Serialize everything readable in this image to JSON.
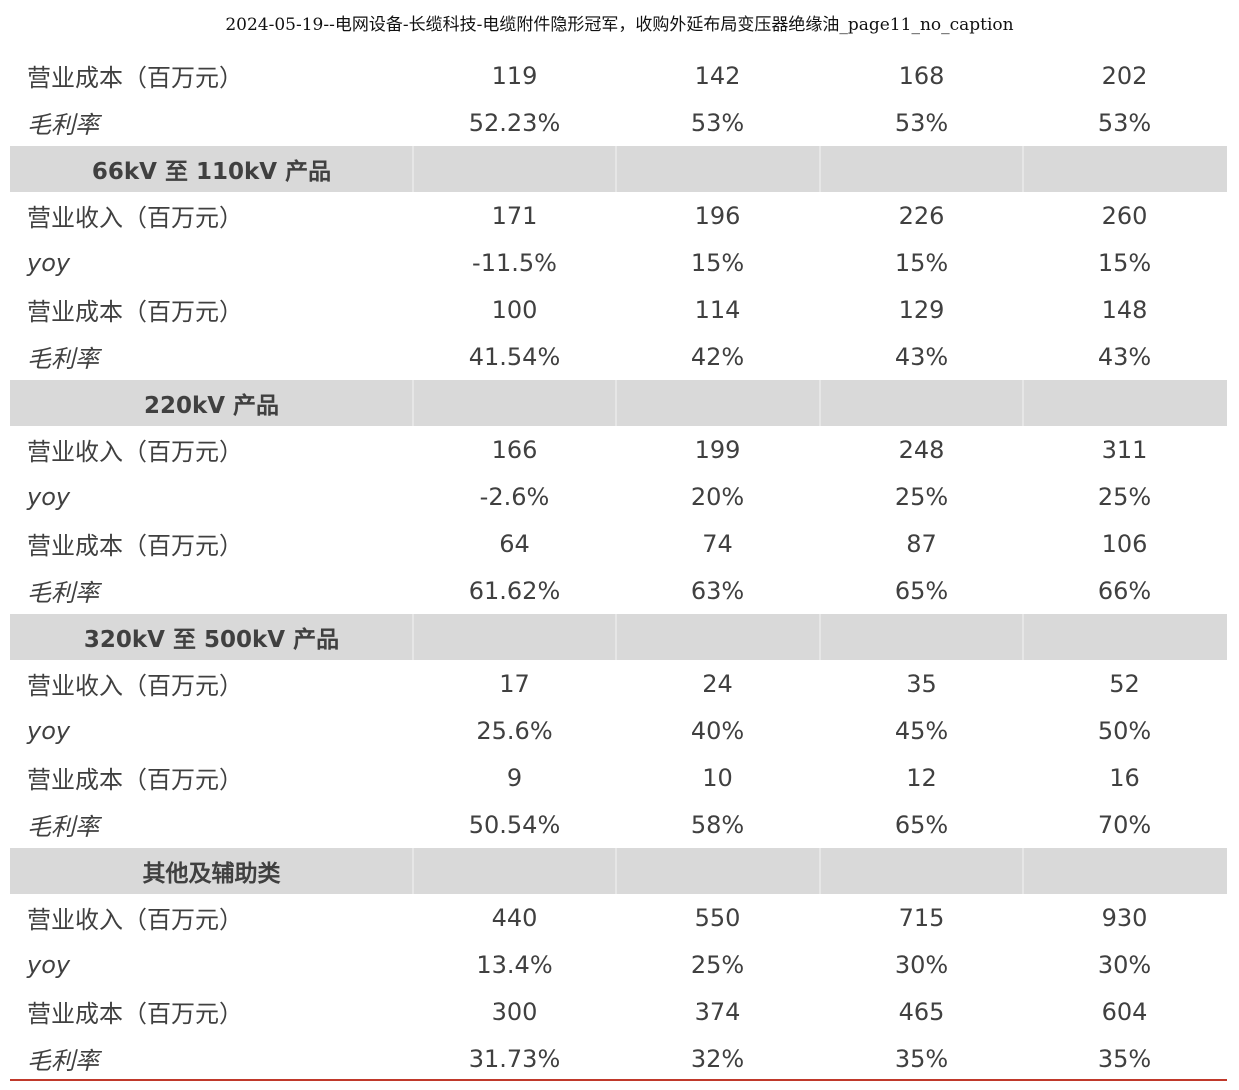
{
  "page": {
    "title": "2024-05-19--电网设备-长缆科技-电缆附件隐形冠军，收购外延布局变压器绝缘油_page11_no_caption"
  },
  "table": {
    "rows": [
      {
        "type": "data",
        "label": "营业成本（百万元）",
        "italic": false,
        "values": [
          "119",
          "142",
          "168",
          "202"
        ]
      },
      {
        "type": "data",
        "label": "毛利率",
        "italic": true,
        "values": [
          "52.23%",
          "53%",
          "53%",
          "53%"
        ]
      },
      {
        "type": "section",
        "label": "66kV 至 110kV 产品"
      },
      {
        "type": "data",
        "label": "营业收入（百万元）",
        "italic": false,
        "values": [
          "171",
          "196",
          "226",
          "260"
        ]
      },
      {
        "type": "data",
        "label": "yoy",
        "italic": true,
        "values": [
          "-11.5%",
          "15%",
          "15%",
          "15%"
        ]
      },
      {
        "type": "data",
        "label": "营业成本（百万元）",
        "italic": false,
        "values": [
          "100",
          "114",
          "129",
          "148"
        ]
      },
      {
        "type": "data",
        "label": "毛利率",
        "italic": true,
        "values": [
          "41.54%",
          "42%",
          "43%",
          "43%"
        ]
      },
      {
        "type": "section",
        "label": "220kV 产品"
      },
      {
        "type": "data",
        "label": "营业收入（百万元）",
        "italic": false,
        "values": [
          "166",
          "199",
          "248",
          "311"
        ]
      },
      {
        "type": "data",
        "label": "yoy",
        "italic": true,
        "values": [
          "-2.6%",
          "20%",
          "25%",
          "25%"
        ]
      },
      {
        "type": "data",
        "label": "营业成本（百万元）",
        "italic": false,
        "values": [
          "64",
          "74",
          "87",
          "106"
        ]
      },
      {
        "type": "data",
        "label": "毛利率",
        "italic": true,
        "values": [
          "61.62%",
          "63%",
          "65%",
          "66%"
        ]
      },
      {
        "type": "section",
        "label": "320kV 至 500kV 产品"
      },
      {
        "type": "data",
        "label": "营业收入（百万元）",
        "italic": false,
        "values": [
          "17",
          "24",
          "35",
          "52"
        ]
      },
      {
        "type": "data",
        "label": "yoy",
        "italic": true,
        "values": [
          "25.6%",
          "40%",
          "45%",
          "50%"
        ]
      },
      {
        "type": "data",
        "label": "营业成本（百万元）",
        "italic": false,
        "values": [
          "9",
          "10",
          "12",
          "16"
        ]
      },
      {
        "type": "data",
        "label": "毛利率",
        "italic": true,
        "values": [
          "50.54%",
          "58%",
          "65%",
          "70%"
        ]
      },
      {
        "type": "section",
        "label": "其他及辅助类"
      },
      {
        "type": "data",
        "label": "营业收入（百万元）",
        "italic": false,
        "values": [
          "440",
          "550",
          "715",
          "930"
        ]
      },
      {
        "type": "data",
        "label": "yoy",
        "italic": true,
        "values": [
          "13.4%",
          "25%",
          "30%",
          "30%"
        ]
      },
      {
        "type": "data",
        "label": "营业成本（百万元）",
        "italic": false,
        "values": [
          "300",
          "374",
          "465",
          "604"
        ]
      },
      {
        "type": "data",
        "label": "毛利率",
        "italic": true,
        "values": [
          "31.73%",
          "32%",
          "35%",
          "35%"
        ]
      }
    ]
  },
  "colors": {
    "section_bg": "#d9d9d9",
    "text": "#404040",
    "bottom_rule": "#c0392b"
  }
}
